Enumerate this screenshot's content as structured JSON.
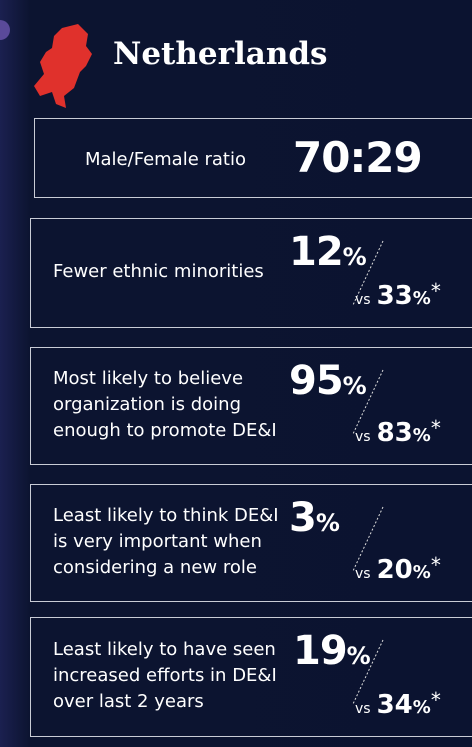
{
  "header": {
    "title": "Netherlands"
  },
  "ratio": {
    "label": "Male/Female ratio",
    "value": "70:29"
  },
  "items": [
    {
      "label": [
        "Fewer ethnic minorities"
      ],
      "value": "12",
      "unit": "%",
      "compare_label": "vs",
      "compare_value": "33",
      "compare_unit": "%",
      "note": "*"
    },
    {
      "label": [
        "Most likely to believe",
        "organization is doing",
        "enough to promote DE&I"
      ],
      "value": "95",
      "unit": "%",
      "compare_label": "vs",
      "compare_value": "83",
      "compare_unit": "%",
      "note": "*"
    },
    {
      "label": [
        "Least likely to think DE&I",
        "is very important when",
        "considering a new role"
      ],
      "value": "3",
      "unit": "%",
      "compare_label": "vs",
      "compare_value": "20",
      "compare_unit": "%",
      "note": "*"
    },
    {
      "label": [
        "Least likely to have seen",
        "increased efforts in DE&I",
        "over last 2 years"
      ],
      "value": "19",
      "unit": "%",
      "compare_label": "vs",
      "compare_value": "34",
      "compare_unit": "%",
      "note": "*"
    }
  ]
}
